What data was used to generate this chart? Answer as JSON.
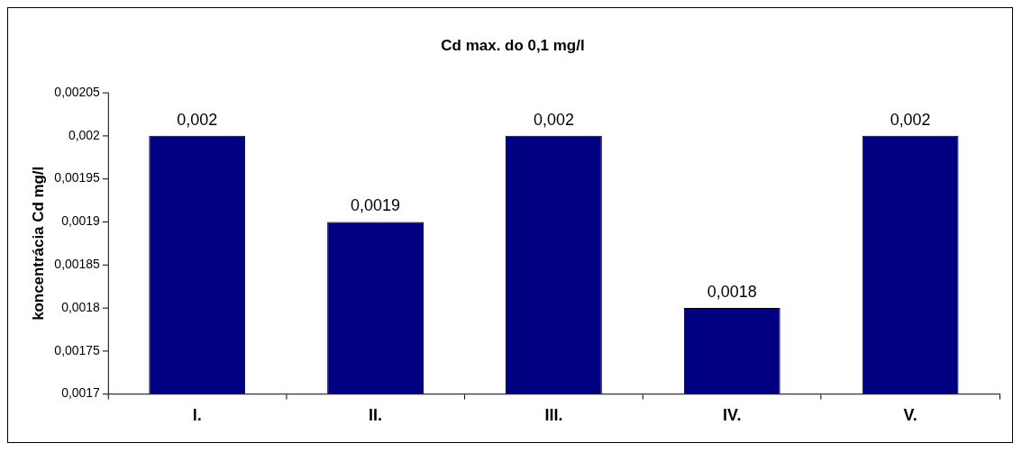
{
  "chart_data": {
    "type": "bar",
    "title": "Cd max. do 0,1 mg/l",
    "ylabel": "koncentrácia Cd mg/l",
    "categories": [
      "I.",
      "II.",
      "III.",
      "IV.",
      "V."
    ],
    "values": [
      0.002,
      0.0019,
      0.002,
      0.0018,
      0.002
    ],
    "value_labels": [
      "0,002",
      "0,0019",
      "0,002",
      "0,0018",
      "0,002"
    ],
    "color": "#000080",
    "ylim": [
      0.0017,
      0.00205
    ],
    "yticks": [
      {
        "value": 0.0017,
        "label": "0,0017"
      },
      {
        "value": 0.00175,
        "label": "0,00175"
      },
      {
        "value": 0.0018,
        "label": "0,0018"
      },
      {
        "value": 0.00185,
        "label": "0,00185"
      },
      {
        "value": 0.0019,
        "label": "0,0019"
      },
      {
        "value": 0.00195,
        "label": "0,00195"
      },
      {
        "value": 0.002,
        "label": "0,002"
      },
      {
        "value": 0.00205,
        "label": "0,00205"
      }
    ],
    "grid": false,
    "legend": false
  }
}
